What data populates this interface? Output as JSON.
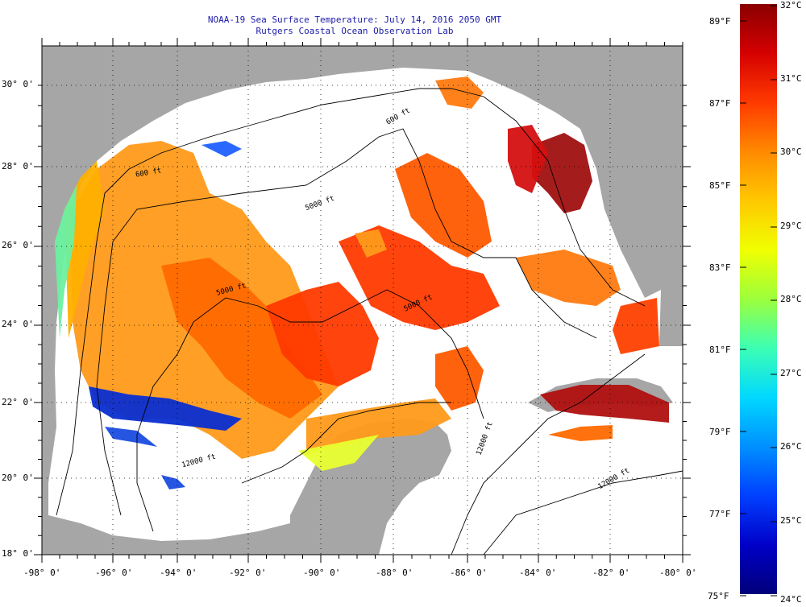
{
  "header": {
    "title_line1": "NOAA-19 Sea Surface Temperature:  July 14, 2016 2050 GMT",
    "title_line2": "Rutgers Coastal Ocean Observation Lab"
  },
  "map": {
    "lon_labels": [
      "-98° 0'",
      "-96° 0'",
      "-94° 0'",
      "-92° 0'",
      "-90° 0'",
      "-88° 0'",
      "-86° 0'",
      "-84° 0'",
      "-82° 0'",
      "-80° 0'"
    ],
    "lat_labels": [
      "18° 0'",
      "20° 0'",
      "22° 0'",
      "24° 0'",
      "26° 0'",
      "28° 0'",
      "30° 0'"
    ],
    "contour_labels": [
      "600 ft",
      "600 ft",
      "5000 ft",
      "5000 ft",
      "5000 ft",
      "12000 ft",
      "12000 ft",
      "12000 ft"
    ],
    "colors": {
      "land": "#a6a6a6",
      "no_data": "#ffffff",
      "contour": "#000000"
    }
  },
  "colorbar": {
    "fahrenheit_labels": [
      "89°F",
      "87°F",
      "85°F",
      "83°F",
      "81°F",
      "79°F",
      "77°F",
      "75°F"
    ],
    "celsius_labels": [
      "32°C",
      "31°C",
      "30°C",
      "29°C",
      "28°C",
      "27°C",
      "26°C",
      "25°C",
      "24°C"
    ],
    "scale_colors": [
      "#8b0000",
      "#d40000",
      "#ff3a00",
      "#ff8a00",
      "#ffc800",
      "#f0ff00",
      "#9cff3c",
      "#3cffb4",
      "#00d8ff",
      "#0090ff",
      "#0040ff",
      "#0000c8",
      "#00007a"
    ]
  }
}
